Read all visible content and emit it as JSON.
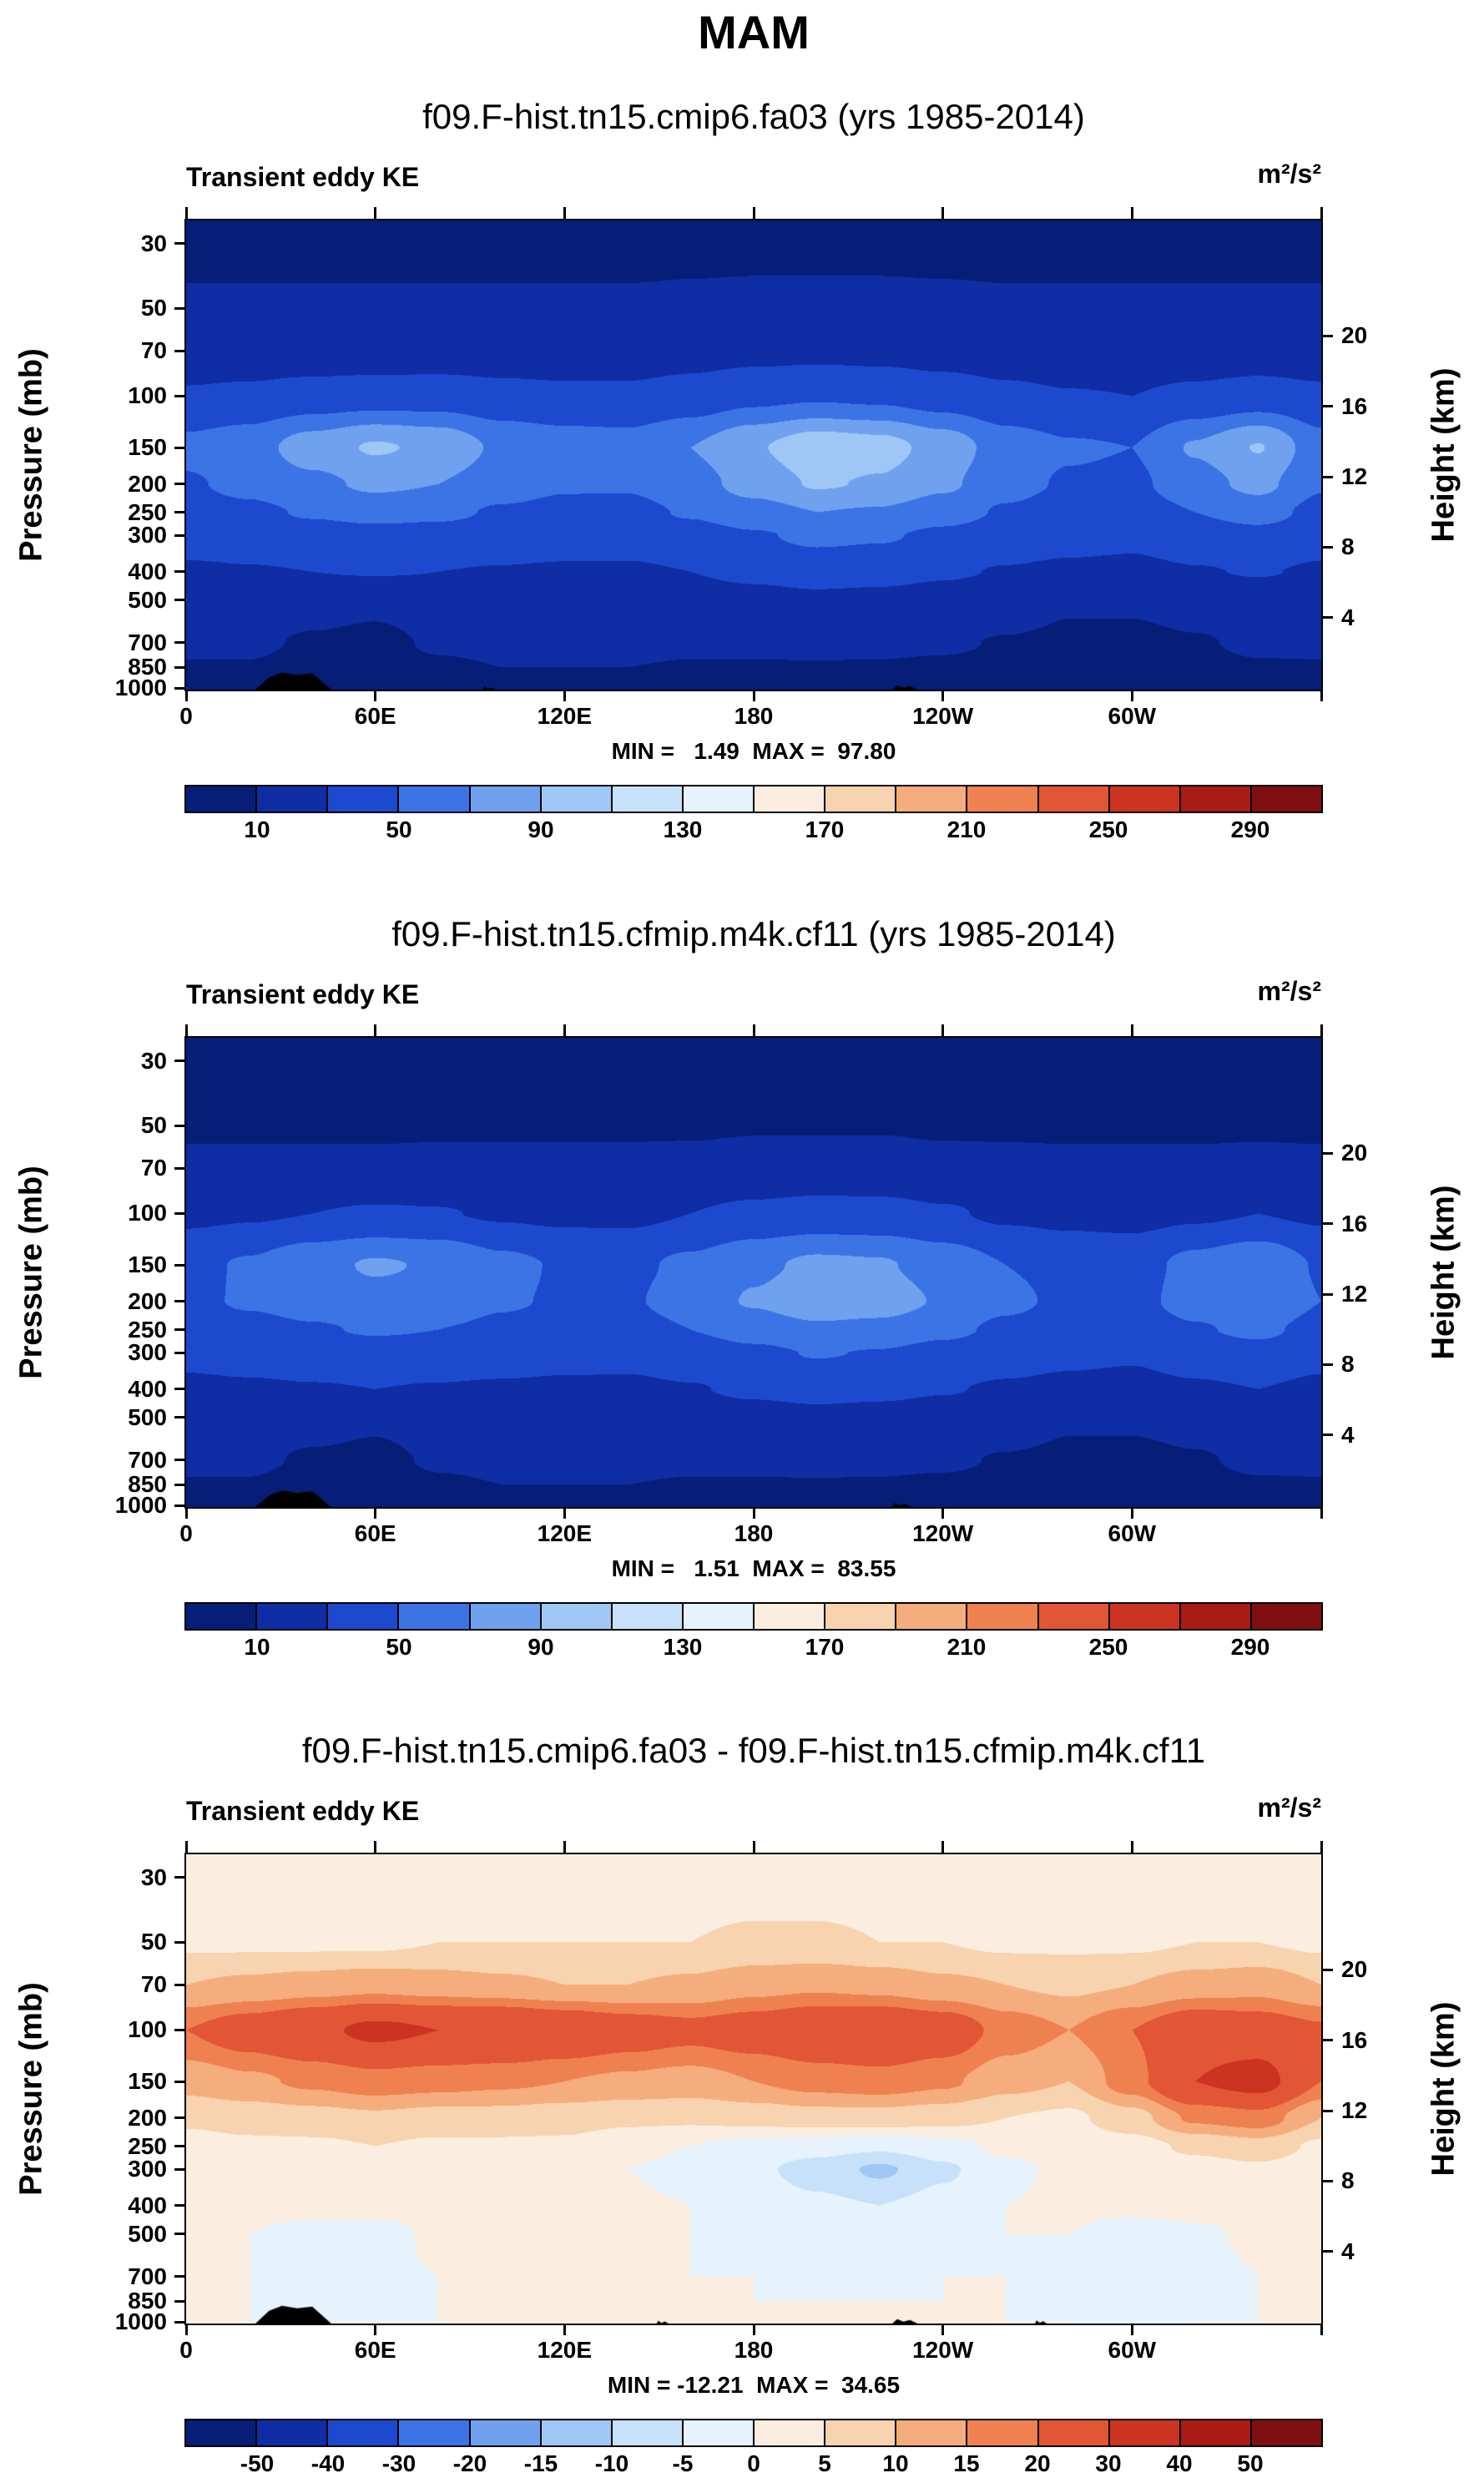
{
  "page_title": "MAM",
  "field_label": "Transient eddy KE",
  "units": "m²/s²",
  "axes": {
    "x_ticks": [
      {
        "lon": 0,
        "label": "0"
      },
      {
        "lon": 60,
        "label": "60E"
      },
      {
        "lon": 120,
        "label": "120E"
      },
      {
        "lon": 180,
        "label": "180"
      },
      {
        "lon": 240,
        "label": "120W"
      },
      {
        "lon": 300,
        "label": "60W"
      },
      {
        "lon": 360,
        "label": ""
      }
    ],
    "pressure_label": "Pressure (mb)",
    "pressure_ticks": [
      30,
      50,
      70,
      100,
      150,
      200,
      250,
      300,
      400,
      500,
      700,
      850,
      1000
    ],
    "height_label": "Height (km)",
    "height_ticks": [
      20,
      16,
      12,
      8,
      4
    ],
    "lon_range": [
      0,
      360
    ],
    "pressure_range": [
      25,
      1013
    ]
  },
  "chart_data": [
    {
      "type": "filled_contour",
      "title": "f09.F-hist.tn15.cmip6.fa03 (yrs 1985-2014)",
      "x_axis": "longitude",
      "y_axis": "pressure_mb_log",
      "min": 1.49,
      "max": 97.8,
      "minmax_text": "MIN =   1.49  MAX =  97.80",
      "levels": [
        10,
        30,
        50,
        70,
        90,
        110,
        130,
        150,
        170,
        190,
        210,
        230,
        250,
        270,
        290
      ],
      "colorbar_labels": [
        "10",
        "50",
        "90",
        "130",
        "170",
        "210",
        "250",
        "290"
      ],
      "colors": [
        "#061e78",
        "#0f2da4",
        "#1d49cf",
        "#3c74e6",
        "#6fa1ef",
        "#9ec7f6",
        "#c8e1fa",
        "#e6f2fc",
        "#fbeee1",
        "#f8d3b0",
        "#f5ad7d",
        "#ef8150",
        "#e35635",
        "#cb3421",
        "#a81c15",
        "#7f0f10"
      ],
      "lons": [
        0,
        20,
        40,
        60,
        80,
        100,
        120,
        140,
        160,
        180,
        200,
        220,
        240,
        260,
        280,
        300,
        320,
        340,
        360
      ],
      "pressures": [
        30,
        50,
        70,
        100,
        150,
        200,
        250,
        300,
        400,
        500,
        700,
        850,
        1000
      ],
      "values": [
        [
          6,
          6,
          6,
          6,
          6,
          6,
          6,
          6,
          6,
          6,
          6,
          6,
          6,
          6,
          6,
          6,
          6,
          6,
          6
        ],
        [
          12,
          12,
          12,
          12,
          12,
          12,
          12,
          12,
          13,
          14,
          14,
          14,
          13,
          12,
          12,
          12,
          12,
          12,
          12
        ],
        [
          18,
          18,
          18,
          18,
          19,
          19,
          19,
          19,
          22,
          24,
          25,
          24,
          22,
          20,
          18,
          18,
          18,
          19,
          18
        ],
        [
          32,
          34,
          38,
          40,
          40,
          36,
          34,
          34,
          38,
          45,
          48,
          46,
          40,
          34,
          31,
          30,
          34,
          38,
          34
        ],
        [
          55,
          62,
          80,
          92,
          86,
          66,
          60,
          58,
          70,
          88,
          103,
          98,
          82,
          60,
          52,
          50,
          72,
          91,
          58
        ],
        [
          48,
          55,
          65,
          74,
          70,
          58,
          52,
          52,
          62,
          78,
          92,
          88,
          74,
          56,
          48,
          46,
          62,
          76,
          52
        ],
        [
          42,
          46,
          52,
          56,
          54,
          48,
          45,
          44,
          52,
          62,
          70,
          68,
          58,
          48,
          42,
          40,
          50,
          58,
          44
        ],
        [
          36,
          38,
          42,
          44,
          43,
          40,
          38,
          37,
          42,
          48,
          54,
          52,
          46,
          40,
          36,
          34,
          40,
          44,
          37
        ],
        [
          28,
          29,
          30,
          31,
          30,
          29,
          28,
          28,
          30,
          34,
          38,
          36,
          32,
          29,
          27,
          26,
          29,
          31,
          28
        ],
        [
          22,
          22,
          18,
          14,
          21,
          22,
          22,
          22,
          22,
          24,
          26,
          25,
          23,
          20,
          12,
          12,
          16,
          20,
          22
        ],
        [
          13,
          13,
          8,
          6,
          12,
          14,
          14,
          14,
          13,
          13,
          14,
          13,
          12,
          9,
          7,
          7,
          9,
          12,
          13
        ],
        [
          9,
          9,
          4,
          3,
          8,
          10,
          10,
          10,
          9,
          9,
          9,
          9,
          8,
          7,
          5,
          5,
          7,
          9,
          9
        ],
        [
          6,
          6,
          2,
          2,
          5,
          7,
          7,
          7,
          7,
          7,
          7,
          7,
          6,
          5,
          4,
          4,
          5,
          7,
          6
        ]
      ],
      "terrain": [
        {
          "lon0": 22,
          "lon1": 46,
          "p_top": 885
        },
        {
          "lon0": 93,
          "lon1": 98,
          "p_top": 990
        },
        {
          "lon0": 222,
          "lon1": 232,
          "p_top": 978
        }
      ]
    },
    {
      "type": "filled_contour",
      "title": "f09.F-hist.tn15.cfmip.m4k.cf11 (yrs 1985-2014)",
      "x_axis": "longitude",
      "y_axis": "pressure_mb_log",
      "min": 1.51,
      "max": 83.55,
      "minmax_text": "MIN =   1.51  MAX =  83.55",
      "levels": [
        10,
        30,
        50,
        70,
        90,
        110,
        130,
        150,
        170,
        190,
        210,
        230,
        250,
        270,
        290
      ],
      "colorbar_labels": [
        "10",
        "50",
        "90",
        "130",
        "170",
        "210",
        "250",
        "290"
      ],
      "colors": [
        "#061e78",
        "#0f2da4",
        "#1d49cf",
        "#3c74e6",
        "#6fa1ef",
        "#9ec7f6",
        "#c8e1fa",
        "#e6f2fc",
        "#fbeee1",
        "#f8d3b0",
        "#f5ad7d",
        "#ef8150",
        "#e35635",
        "#cb3421",
        "#a81c15",
        "#7f0f10"
      ],
      "lons": [
        0,
        20,
        40,
        60,
        80,
        100,
        120,
        140,
        160,
        180,
        200,
        220,
        240,
        260,
        280,
        300,
        320,
        340,
        360
      ],
      "pressures": [
        30,
        50,
        70,
        100,
        150,
        200,
        250,
        300,
        400,
        500,
        700,
        850,
        1000
      ],
      "values": [
        [
          4,
          4,
          4,
          4,
          4,
          4,
          4,
          4,
          4,
          4,
          4,
          4,
          4,
          4,
          4,
          4,
          4,
          4,
          4
        ],
        [
          8,
          8,
          8,
          8,
          8,
          8,
          8,
          8,
          8,
          9,
          9,
          9,
          8,
          8,
          8,
          8,
          8,
          8,
          8
        ],
        [
          13,
          13,
          13,
          13,
          14,
          14,
          14,
          14,
          15,
          16,
          17,
          17,
          15,
          14,
          13,
          13,
          13,
          14,
          13
        ],
        [
          26,
          28,
          30,
          32,
          31,
          28,
          26,
          26,
          30,
          34,
          37,
          36,
          32,
          27,
          25,
          24,
          27,
          30,
          27
        ],
        [
          45,
          52,
          64,
          72,
          68,
          55,
          48,
          46,
          54,
          66,
          74,
          72,
          62,
          50,
          44,
          42,
          56,
          66,
          48
        ],
        [
          46,
          52,
          58,
          64,
          62,
          52,
          48,
          48,
          58,
          72,
          84,
          80,
          68,
          54,
          46,
          44,
          58,
          70,
          50
        ],
        [
          40,
          44,
          48,
          52,
          50,
          46,
          43,
          42,
          50,
          58,
          66,
          64,
          55,
          46,
          40,
          38,
          48,
          55,
          42
        ],
        [
          34,
          36,
          39,
          41,
          40,
          38,
          36,
          35,
          40,
          46,
          51,
          49,
          43,
          38,
          34,
          32,
          38,
          42,
          35
        ],
        [
          27,
          28,
          29,
          30,
          29,
          28,
          27,
          27,
          29,
          33,
          36,
          34,
          31,
          28,
          26,
          25,
          28,
          30,
          27
        ],
        [
          21,
          21,
          17,
          13,
          20,
          21,
          21,
          21,
          21,
          23,
          25,
          24,
          22,
          19,
          12,
          12,
          15,
          19,
          21
        ],
        [
          13,
          13,
          8,
          6,
          12,
          14,
          14,
          14,
          13,
          13,
          14,
          13,
          12,
          9,
          7,
          7,
          9,
          12,
          13
        ],
        [
          9,
          9,
          4,
          3,
          8,
          10,
          10,
          10,
          9,
          9,
          9,
          9,
          8,
          7,
          5,
          5,
          7,
          9,
          9
        ],
        [
          6,
          6,
          2,
          2,
          5,
          7,
          7,
          7,
          7,
          7,
          7,
          7,
          6,
          5,
          4,
          4,
          5,
          7,
          6
        ]
      ],
      "terrain": [
        {
          "lon0": 22,
          "lon1": 46,
          "p_top": 890
        },
        {
          "lon0": 222,
          "lon1": 230,
          "p_top": 982
        }
      ]
    },
    {
      "type": "filled_contour",
      "title": "f09.F-hist.tn15.cmip6.fa03 - f09.F-hist.tn15.cfmip.m4k.cf11",
      "x_axis": "longitude",
      "y_axis": "pressure_mb_log",
      "min": -12.21,
      "max": 34.65,
      "minmax_text": "MIN = -12.21  MAX =  34.65",
      "levels": [
        -50,
        -40,
        -30,
        -20,
        -15,
        -10,
        -5,
        0,
        5,
        10,
        15,
        20,
        30,
        40,
        50
      ],
      "colorbar_labels": [
        "-50",
        "-40",
        "-30",
        "-20",
        "-15",
        "-10",
        "-5",
        "0",
        "5",
        "10",
        "15",
        "20",
        "30",
        "40",
        "50"
      ],
      "colors": [
        "#061e78",
        "#0f2da4",
        "#1d49cf",
        "#3c74e6",
        "#6fa1ef",
        "#9ec7f6",
        "#c8e1fa",
        "#e6f2fc",
        "#fbeee1",
        "#f8d3b0",
        "#f5ad7d",
        "#ef8150",
        "#e35635",
        "#cb3421",
        "#a81c15",
        "#7f0f10"
      ],
      "lons": [
        0,
        20,
        40,
        60,
        80,
        100,
        120,
        140,
        160,
        180,
        200,
        220,
        240,
        260,
        280,
        300,
        320,
        340,
        360
      ],
      "pressures": [
        30,
        50,
        70,
        100,
        150,
        200,
        250,
        300,
        400,
        500,
        700,
        850,
        1000
      ],
      "values": [
        [
          2,
          2,
          2,
          2,
          2,
          2,
          2,
          2,
          2,
          2,
          2,
          2,
          2,
          2,
          2,
          2,
          2,
          2,
          2
        ],
        [
          4,
          4,
          4,
          4,
          5,
          5,
          5,
          5,
          5,
          6,
          6,
          5,
          5,
          4,
          4,
          4,
          5,
          5,
          4
        ],
        [
          10,
          11,
          12,
          13,
          12,
          11,
          10,
          10,
          11,
          13,
          14,
          13,
          11,
          10,
          9,
          10,
          12,
          13,
          10
        ],
        [
          20,
          24,
          28,
          32,
          30,
          30,
          27,
          24,
          22,
          24,
          27,
          28,
          25,
          18,
          15,
          20,
          26,
          24,
          21
        ],
        [
          12,
          14,
          16,
          18,
          17,
          16,
          15,
          14,
          13,
          15,
          17,
          18,
          16,
          12,
          10,
          18,
          30,
          34,
          20
        ],
        [
          6,
          7,
          8,
          9,
          8,
          8,
          7,
          6,
          6,
          7,
          8,
          8,
          7,
          5,
          4,
          8,
          16,
          18,
          10
        ],
        [
          3,
          4,
          4,
          5,
          4,
          4,
          4,
          2,
          0,
          -2,
          -3,
          -4,
          -2,
          1,
          2,
          3,
          6,
          8,
          4
        ],
        [
          2,
          3,
          3,
          3,
          3,
          3,
          2,
          0,
          -2,
          -4,
          -7,
          -11,
          -6,
          -1,
          1,
          2,
          3,
          4,
          2
        ],
        [
          1,
          2,
          2,
          2,
          2,
          2,
          2,
          1,
          0,
          -2,
          -4,
          -5,
          -3,
          0,
          1,
          1,
          2,
          2,
          1
        ],
        [
          1,
          0,
          -2,
          -2,
          1,
          2,
          2,
          1,
          0,
          -1,
          -2,
          -2,
          -1,
          0,
          0,
          -2,
          -1,
          1,
          1
        ],
        [
          0,
          0,
          -2,
          -1,
          0,
          1,
          1,
          1,
          0,
          0,
          -1,
          -1,
          0,
          0,
          -1,
          -3,
          -2,
          0,
          0
        ],
        [
          0,
          0,
          -1,
          -1,
          0,
          1,
          1,
          0,
          0,
          0,
          0,
          0,
          0,
          0,
          -1,
          -2,
          -1,
          0,
          0
        ],
        [
          0,
          0,
          0,
          0,
          0,
          1,
          1,
          0,
          0,
          0,
          0,
          0,
          0,
          0,
          0,
          -1,
          0,
          0,
          0
        ]
      ],
      "terrain": [
        {
          "lon0": 22,
          "lon1": 46,
          "p_top": 880
        },
        {
          "lon0": 148,
          "lon1": 153,
          "p_top": 990
        },
        {
          "lon0": 222,
          "lon1": 232,
          "p_top": 978
        },
        {
          "lon0": 268,
          "lon1": 273,
          "p_top": 988
        }
      ]
    }
  ]
}
